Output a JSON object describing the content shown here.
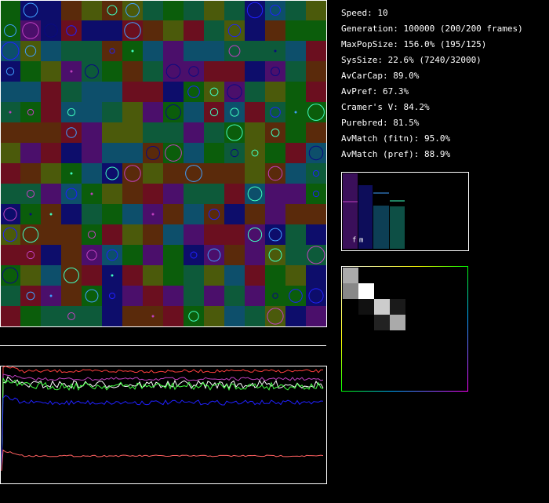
{
  "stats": [
    "Speed: 10",
    "Generation: 100000 (200/200 frames)",
    "MaxPopSize: 156.0% (195/125)",
    "SysSize: 22.6% (7240/32000)",
    "AvCarCap: 89.0%",
    "AvPref: 67.3%",
    "Cramer's V: 84.2%",
    "Purebred: 81.5%",
    "AvMatch (fitn): 95.0%",
    "AvMatch (pref): 88.9%"
  ],
  "bar_panel": {
    "labels": [
      "f",
      "m"
    ]
  }
}
